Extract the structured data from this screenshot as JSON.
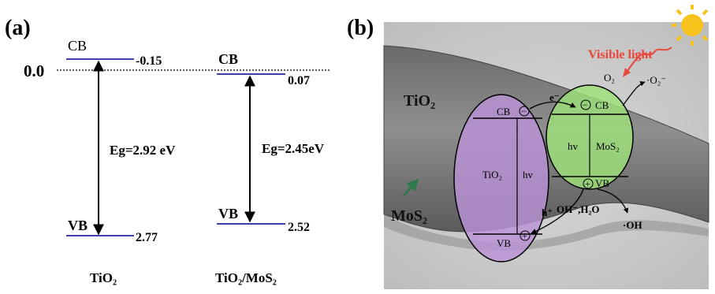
{
  "panel_a": {
    "label": "(a)",
    "zero_label": "0.0",
    "tio2": {
      "cb_label": "CB",
      "cb_value": "-0.15",
      "vb_label": "VB",
      "vb_value": "2.77",
      "eg_label": "Eg=2.92 eV",
      "material": "TiO₂"
    },
    "composite": {
      "cb_label": "CB",
      "cb_value": "0.07",
      "vb_label": "VB",
      "vb_value": "2.52",
      "eg_label": "Eg=2.45eV",
      "material": "TiO₂/MoS₂"
    },
    "colors": {
      "band_line": "#3f3fb0",
      "arrow": "#000000"
    }
  },
  "panel_b": {
    "label": "(b)",
    "visible_light": "Visible light",
    "tio2_rod": "TiO₂",
    "mos2_pointer": "MoS₂",
    "tio2_ellipse": {
      "cb": "CB",
      "vb": "VB",
      "name": "TiO₂",
      "hv": "hv",
      "electron_symbol": "−",
      "hole_symbol": "+"
    },
    "mos2_ellipse": {
      "cb": "CB",
      "vb": "VB",
      "name": "MoS₂",
      "hv": "hv",
      "electron_symbol": "−",
      "hole_symbol": "+"
    },
    "electron": "e⁻",
    "hole": "h⁺",
    "o2": "O₂",
    "superoxide": "·O₂⁻",
    "oh_source": "OH⁻,H₂O",
    "hydroxyl": "·OH",
    "colors": {
      "tio2_fill": "#b993d6",
      "mos2_fill": "#9ee07a",
      "light": "#e8463a",
      "sun": "#f7c21c",
      "pointer": "#2a7a4a"
    }
  }
}
